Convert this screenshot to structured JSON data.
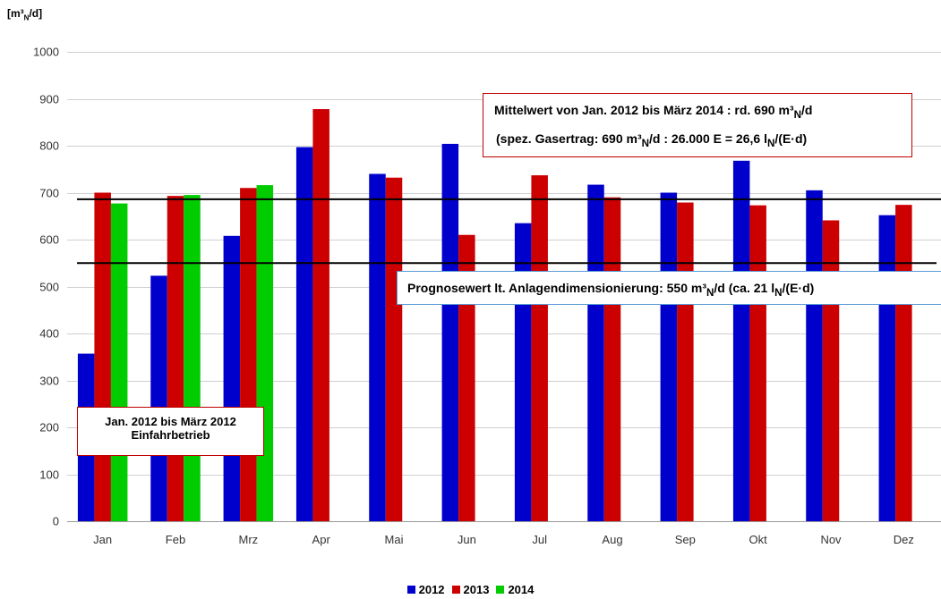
{
  "chart_data": {
    "type": "bar",
    "unit_label": "[m³N/d]",
    "categories": [
      "Jan",
      "Feb",
      "Mrz",
      "Apr",
      "Mai",
      "Jun",
      "Jul",
      "Aug",
      "Sep",
      "Okt",
      "Nov",
      "Dez"
    ],
    "series": [
      {
        "name": "2012",
        "color": "#0000cc",
        "values": [
          357,
          523,
          608,
          797,
          740,
          804,
          635,
          717,
          700,
          768,
          705,
          652
        ]
      },
      {
        "name": "2013",
        "color": "#cc0000",
        "values": [
          700,
          693,
          710,
          878,
          732,
          610,
          737,
          690,
          679,
          673,
          641,
          674
        ]
      },
      {
        "name": "2014",
        "color": "#00cc00",
        "values": [
          677,
          695,
          716,
          null,
          null,
          null,
          null,
          null,
          null,
          null,
          null,
          null
        ]
      }
    ],
    "ylim": [
      0,
      1000
    ],
    "yticks": [
      0,
      100,
      200,
      300,
      400,
      500,
      600,
      700,
      800,
      900,
      1000
    ],
    "grid": true,
    "legend_position": "bottom",
    "reference_lines": [
      {
        "id": "mean",
        "value": 686
      },
      {
        "id": "forecast",
        "value": 550
      }
    ],
    "annotations": {
      "mean_line1": {
        "pre": "Mittelwert von Jan. 2012 bis März 2014 : rd. 690 m³",
        "sub": "N",
        "post": "/d"
      },
      "mean_line2": {
        "pre": "(spez. Gasertrag:  690 m³",
        "sub1": "N",
        "mid": "/d : 26.000 E = 26,6 l",
        "sub2": "N",
        "post": "/(E·d)"
      },
      "forecast": {
        "pre": "Prognosewert lt. Anlagendimensionierung: 550 m³",
        "sub1": "N",
        "mid": "/d (ca. 21 l",
        "sub2": "N",
        "post": "/(E·d)"
      },
      "startup_line1": "Jan. 2012 bis März 2012",
      "startup_line2": "Einfahrbetrieb"
    }
  }
}
